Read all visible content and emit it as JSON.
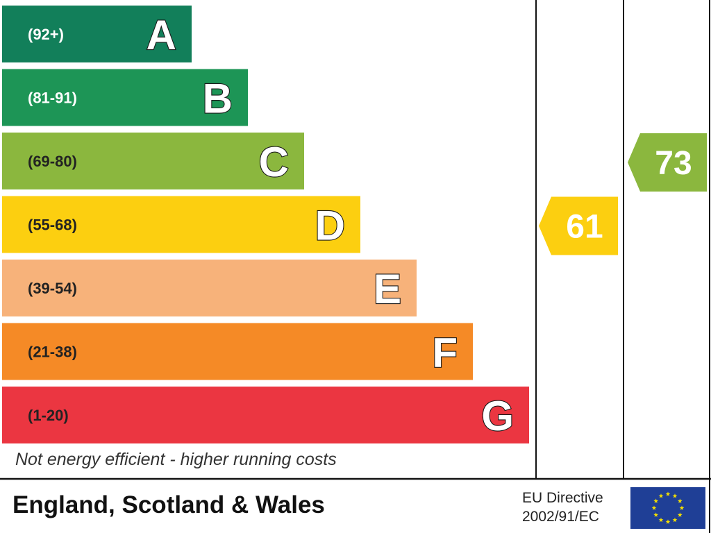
{
  "chart_data": {
    "type": "bar",
    "bands": [
      {
        "range": "(92+)",
        "letter": "A",
        "color": "#127f5a"
      },
      {
        "range": "(81-91)",
        "letter": "B",
        "color": "#1d9556"
      },
      {
        "range": "(69-80)",
        "letter": "C",
        "color": "#8bb73e"
      },
      {
        "range": "(55-68)",
        "letter": "D",
        "color": "#fccf10"
      },
      {
        "range": "(39-54)",
        "letter": "E",
        "color": "#f7b27a"
      },
      {
        "range": "(21-38)",
        "letter": "F",
        "color": "#f58a26"
      },
      {
        "range": "(1-20)",
        "letter": "G",
        "color": "#eb3641"
      }
    ],
    "ratings": [
      {
        "value": 61,
        "band": "D",
        "color": "#fccf10"
      },
      {
        "value": 73,
        "band": "C",
        "color": "#8bb73e"
      }
    ]
  },
  "footnote": "Not energy efficient - higher running costs",
  "region": "England, Scotland & Wales",
  "directive": {
    "line1": "EU Directive",
    "line2": "2002/91/EC"
  },
  "flag": {
    "background": "#1f3f96",
    "stars": "#f5e000"
  }
}
